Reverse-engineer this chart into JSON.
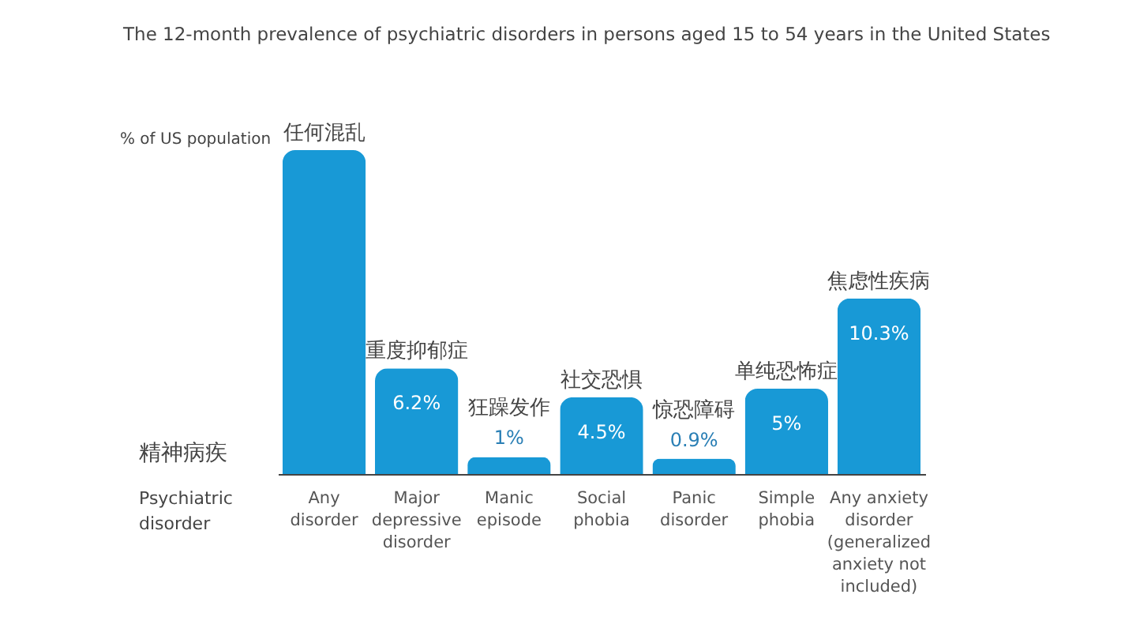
{
  "chart_data": {
    "type": "bar",
    "title": "The 12-month prevalence of psychiatric disorders in persons aged 15 to 54 years in the United States",
    "xlabel": "Psychiatric disorder",
    "ylabel": "% of US population",
    "categories": [
      "Any\ndisorder",
      "Major\ndepressive\ndisorder",
      "Manic\nepisode",
      "Social\nphobia",
      "Panic\ndisorder",
      "Simple\nphobia",
      "Any anxiety\ndisorder\n(generalized\nanxiety not\nincluded)"
    ],
    "values": [
      19,
      6.2,
      1,
      4.5,
      0.9,
      5,
      10.3
    ],
    "value_labels": [
      null,
      "6.2%",
      "1%",
      "4.5%",
      "0.9%",
      "5%",
      "10.3%"
    ],
    "color": "#1899d6",
    "annotations": [
      {
        "text": "任何混乱",
        "x": "Any\ndisorder",
        "y": 19
      },
      {
        "text": "重度抑郁症",
        "x": "Major\ndepressive\ndisorder",
        "y": 6.2
      },
      {
        "text": "狂躁发作",
        "x": "Manic\nepisode",
        "y": 1
      },
      {
        "text": "社交恐惧",
        "x": "Social\nphobia",
        "y": 4.5
      },
      {
        "text": "惊恐障碍",
        "x": "Panic\ndisorder",
        "y": 0.9
      },
      {
        "text": "单纯恐怖症",
        "x": "Simple\nphobia",
        "y": 5
      },
      {
        "text": "焦虑性疾病",
        "x": "Any anxiety\ndisorder\n(generalized\nanxiety not\nincluded)",
        "y": 10.3
      },
      "精神病疾"
    ]
  }
}
